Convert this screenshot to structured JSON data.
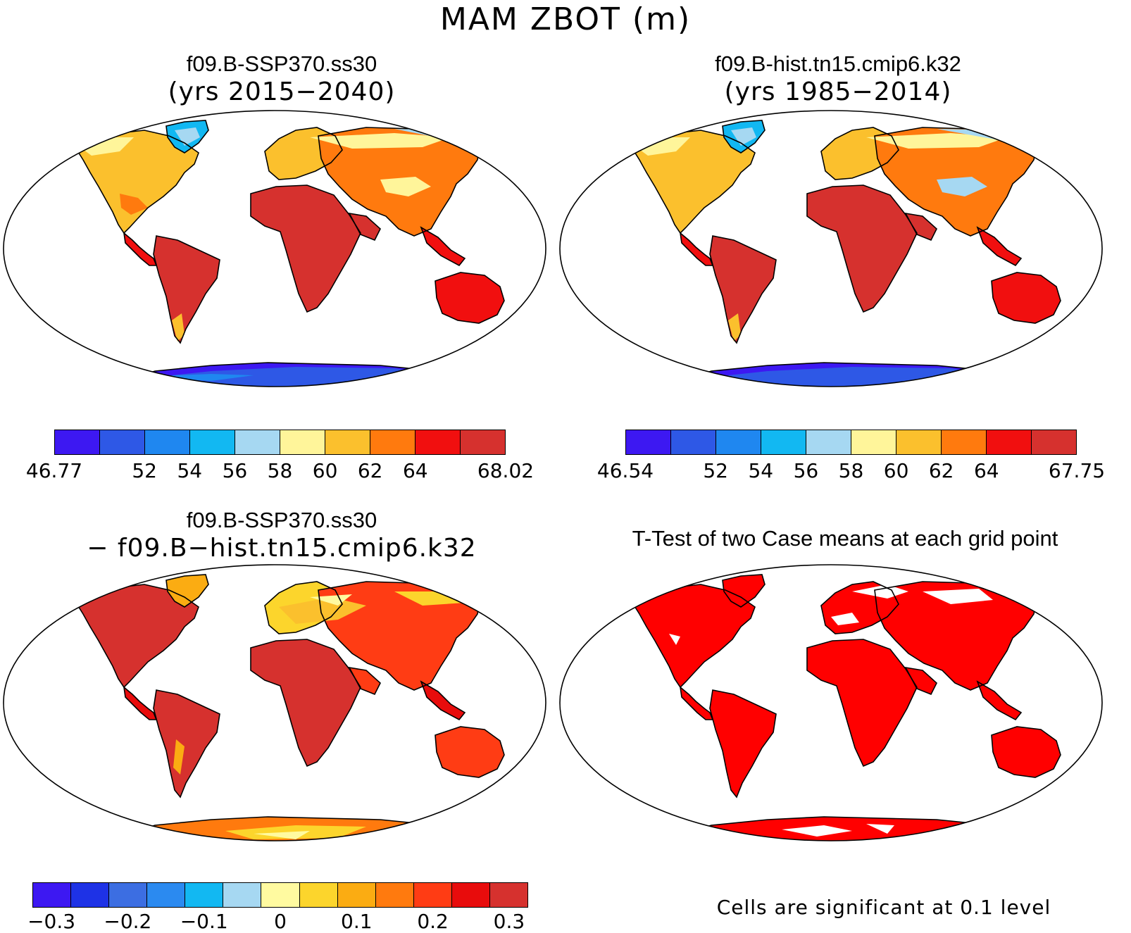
{
  "title": "MAM ZBOT (m)",
  "panels": [
    {
      "id": "ssp370",
      "title": "f09.B-SSP370.ss30",
      "subtitle": "(yrs 2015−2040)",
      "colorbar": {
        "colors": [
          "#3d18f2",
          "#2e58e6",
          "#1f87f0",
          "#12b8f2",
          "#a6d8f2",
          "#fff59a",
          "#fbc02d",
          "#ff7a0e",
          "#f10f0f",
          "#d6312e"
        ],
        "ticks": [
          "46.77",
          "",
          "52",
          "54",
          "56",
          "58",
          "60",
          "62",
          "64",
          "",
          "68.02"
        ]
      }
    },
    {
      "id": "hist",
      "title": "f09.B-hist.tn15.cmip6.k32",
      "subtitle": "(yrs 1985−2014)",
      "colorbar": {
        "colors": [
          "#3d18f2",
          "#2e58e6",
          "#1f87f0",
          "#12b8f2",
          "#a6d8f2",
          "#fff59a",
          "#fbc02d",
          "#ff7a0e",
          "#f10f0f",
          "#d6312e"
        ],
        "ticks": [
          "46.54",
          "",
          "52",
          "54",
          "56",
          "58",
          "60",
          "62",
          "64",
          "",
          "67.75"
        ]
      }
    },
    {
      "id": "diff",
      "title": "f09.B-SSP370.ss30",
      "subtitle": "− f09.B−hist.tn15.cmip6.k32",
      "colorbar": {
        "colors": [
          "#3d18f2",
          "#1e32e6",
          "#3c6ee2",
          "#2b8af0",
          "#12b8f2",
          "#a6d8f2",
          "#fffaa0",
          "#fcd52c",
          "#fbac12",
          "#ff7a0e",
          "#ff3c14",
          "#e80c0c",
          "#d6312e"
        ],
        "ticks": [
          "−0.3",
          "−0.2",
          "−0.1",
          "0",
          "0.1",
          "0.2",
          "0.3"
        ]
      }
    },
    {
      "id": "ttest",
      "title": "T-Test of two Case means at each grid point",
      "note": "Cells are significant at 0.1 level"
    }
  ]
}
